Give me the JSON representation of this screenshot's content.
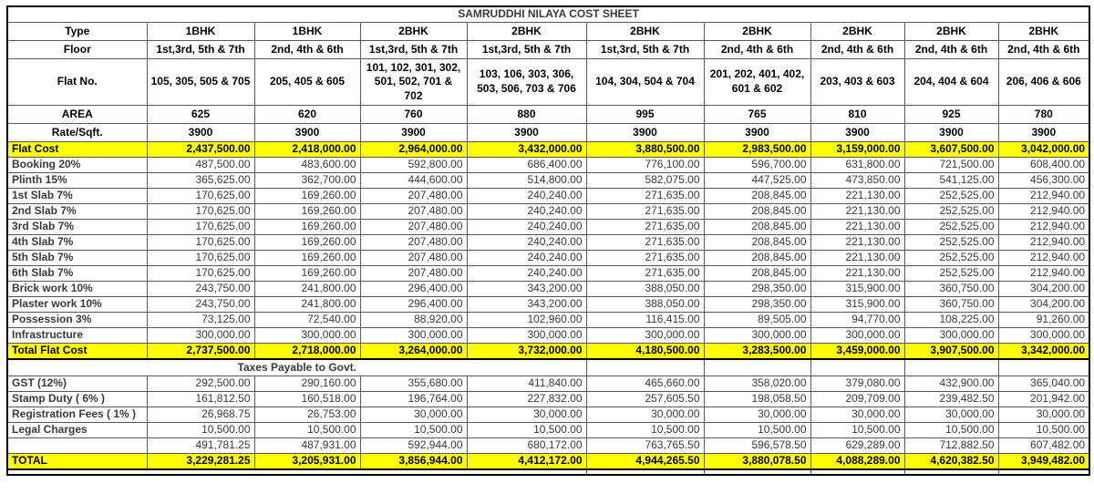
{
  "title": "SAMRUDDHI NILAYA COST SHEET",
  "colors": {
    "highlight": "#ffff00",
    "grid": "#595959",
    "outer_border": "#000000"
  },
  "rows": [
    {
      "name": "row-type",
      "style": "head",
      "label": "Type",
      "values": [
        "1BHK",
        "1BHK",
        "2BHK",
        "2BHK",
        "2BHK",
        "2BHK",
        "2BHK",
        "2BHK",
        "2BHK"
      ]
    },
    {
      "name": "row-floor",
      "style": "head",
      "label": "Floor",
      "values": [
        "1st,3rd, 5th & 7th",
        "2nd, 4th & 6th",
        "1st,3rd, 5th & 7th",
        "1st,3rd, 5th & 7th",
        "1st,3rd, 5th & 7th",
        "2nd, 4th & 6th",
        "2nd, 4th & 6th",
        "2nd, 4th & 6th",
        "2nd, 4th & 6th"
      ]
    },
    {
      "name": "row-flat-no",
      "style": "head tall",
      "label": "Flat No.",
      "values": [
        "105, 305, 505 & 705",
        "205, 405 & 605",
        "101, 102, 301, 302, 501, 502, 701 & 702",
        "103, 106, 303, 306, 503, 506, 703 & 706",
        "104, 304, 504 & 704",
        "201, 202, 401, 402, 601 & 602",
        "203, 403 & 603",
        "204, 404 & 604",
        "206, 406 & 606"
      ]
    },
    {
      "name": "row-area",
      "style": "head",
      "label": "AREA",
      "values": [
        "625",
        "620",
        "760",
        "880",
        "995",
        "765",
        "810",
        "925",
        "780"
      ]
    },
    {
      "name": "row-rate",
      "style": "head",
      "label": "Rate/Sqft.",
      "values": [
        "3900",
        "3900",
        "3900",
        "3900",
        "3900",
        "3900",
        "3900",
        "3900",
        "3900"
      ]
    },
    {
      "name": "row-flat-cost",
      "style": "highlight",
      "label": "Flat Cost",
      "values": [
        "2,437,500.00",
        "2,418,000.00",
        "2,964,000.00",
        "3,432,000.00",
        "3,880,500.00",
        "2,983,500.00",
        "3,159,000.00",
        "3,607,500.00",
        "3,042,000.00"
      ]
    },
    {
      "name": "row-booking",
      "style": "normal",
      "label": "Booking 20%",
      "values": [
        "487,500.00",
        "483,600.00",
        "592,800.00",
        "686,400.00",
        "776,100.00",
        "596,700.00",
        "631,800.00",
        "721,500.00",
        "608,400.00"
      ]
    },
    {
      "name": "row-plinth",
      "style": "normal",
      "label": "Plinth 15%",
      "values": [
        "365,625.00",
        "362,700.00",
        "444,600.00",
        "514,800.00",
        "582,075.00",
        "447,525.00",
        "473,850.00",
        "541,125.00",
        "456,300.00"
      ]
    },
    {
      "name": "row-slab-1",
      "style": "normal",
      "label": "1st Slab 7%",
      "values": [
        "170,625.00",
        "169,260.00",
        "207,480.00",
        "240,240.00",
        "271,635.00",
        "208,845.00",
        "221,130.00",
        "252,525.00",
        "212,940.00"
      ]
    },
    {
      "name": "row-slab-2",
      "style": "normal",
      "label": "2nd Slab 7%",
      "values": [
        "170,625.00",
        "169,260.00",
        "207,480.00",
        "240,240.00",
        "271,635.00",
        "208,845.00",
        "221,130.00",
        "252,525.00",
        "212,940.00"
      ]
    },
    {
      "name": "row-slab-3",
      "style": "normal",
      "label": "3rd Slab 7%",
      "values": [
        "170,625.00",
        "169,260.00",
        "207,480.00",
        "240,240.00",
        "271,635.00",
        "208,845.00",
        "221,130.00",
        "252,525.00",
        "212,940.00"
      ]
    },
    {
      "name": "row-slab-4",
      "style": "normal",
      "label": "4th Slab 7%",
      "values": [
        "170,625.00",
        "169,260.00",
        "207,480.00",
        "240,240.00",
        "271,635.00",
        "208,845.00",
        "221,130.00",
        "252,525.00",
        "212,940.00"
      ]
    },
    {
      "name": "row-slab-5",
      "style": "normal",
      "label": "5th Slab 7%",
      "values": [
        "170,625.00",
        "169,260.00",
        "207,480.00",
        "240,240.00",
        "271,635.00",
        "208,845.00",
        "221,130.00",
        "252,525.00",
        "212,940.00"
      ]
    },
    {
      "name": "row-slab-6",
      "style": "normal",
      "label": "6th Slab 7%",
      "values": [
        "170,625.00",
        "169,260.00",
        "207,480.00",
        "240,240.00",
        "271,635.00",
        "208,845.00",
        "221,130.00",
        "252,525.00",
        "212,940.00"
      ]
    },
    {
      "name": "row-brick-work",
      "style": "normal",
      "label": "Brick work 10%",
      "values": [
        "243,750.00",
        "241,800.00",
        "296,400.00",
        "343,200.00",
        "388,050.00",
        "298,350.00",
        "315,900.00",
        "360,750.00",
        "304,200.00"
      ]
    },
    {
      "name": "row-plaster-work",
      "style": "normal",
      "label": "Plaster work 10%",
      "values": [
        "243,750.00",
        "241,800.00",
        "296,400.00",
        "343,200.00",
        "388,050.00",
        "298,350.00",
        "315,900.00",
        "360,750.00",
        "304,200.00"
      ]
    },
    {
      "name": "row-possession",
      "style": "normal",
      "label": "Possession 3%",
      "values": [
        "73,125.00",
        "72,540.00",
        "88,920.00",
        "102,960.00",
        "116,415.00",
        "89,505.00",
        "94,770.00",
        "108,225.00",
        "91,260.00"
      ]
    },
    {
      "name": "row-infrastructure",
      "style": "normal",
      "label": "Infrastructure",
      "values": [
        "300,000.00",
        "300,000.00",
        "300,000.00",
        "300,000.00",
        "300,000.00",
        "300,000.00",
        "300,000.00",
        "300,000.00",
        "300,000.00"
      ]
    },
    {
      "name": "row-total-flat-cost",
      "style": "highlight",
      "label": "Total Flat Cost",
      "values": [
        "2,737,500.00",
        "2,718,000.00",
        "3,264,000.00",
        "3,732,000.00",
        "4,180,500.00",
        "3,283,500.00",
        "3,459,000.00",
        "3,907,500.00",
        "3,342,000.00"
      ]
    },
    {
      "name": "row-taxes-section",
      "style": "section",
      "label": "Taxes Payable to Govt.",
      "values": [
        "",
        "",
        "",
        "",
        ""
      ]
    },
    {
      "name": "row-gst",
      "style": "normal",
      "label": "GST (12%)",
      "values": [
        "292,500.00",
        "290,160.00",
        "355,680.00",
        "411,840.00",
        "465,660.00",
        "358,020.00",
        "379,080.00",
        "432,900.00",
        "365,040.00"
      ]
    },
    {
      "name": "row-stamp-duty",
      "style": "normal",
      "label": "Stamp Duty ( 6% )",
      "values": [
        "161,812.50",
        "160,518.00",
        "196,764.00",
        "227,832.00",
        "257,605.50",
        "198,058.50",
        "209,709.00",
        "239,482.50",
        "201,942.00"
      ]
    },
    {
      "name": "row-registration-fees",
      "style": "normal",
      "label": "Registration Fees ( 1% )",
      "values": [
        "26,968.75",
        "26,753.00",
        "30,000.00",
        "30,000.00",
        "30,000.00",
        "30,000.00",
        "30,000.00",
        "30,000.00",
        "30,000.00"
      ]
    },
    {
      "name": "row-legal-charges",
      "style": "normal",
      "label": "Legal Charges",
      "values": [
        "10,500.00",
        "10,500.00",
        "10,500.00",
        "10,500.00",
        "10,500.00",
        "10,500.00",
        "10,500.00",
        "10,500.00",
        "10,500.00"
      ]
    },
    {
      "name": "row-taxes-subtotal",
      "style": "normal",
      "label": "",
      "values": [
        "491,781.25",
        "487,931.00",
        "592,944.00",
        "680,172.00",
        "763,765.50",
        "596,578.50",
        "629,289.00",
        "712,882.50",
        "607,482.00"
      ]
    },
    {
      "name": "row-grand-total",
      "style": "highlight total",
      "label": "TOTAL",
      "values": [
        "3,229,281.25",
        "3,205,931.00",
        "3,856,944.00",
        "4,412,172.00",
        "4,944,265.50",
        "3,880,078.50",
        "4,088,289.00",
        "4,620,382.50",
        "3,949,482.00"
      ]
    },
    {
      "name": "row-bottom-partial",
      "style": "section partial",
      "label": "",
      "values": [
        "",
        "",
        "",
        "",
        ""
      ]
    }
  ]
}
